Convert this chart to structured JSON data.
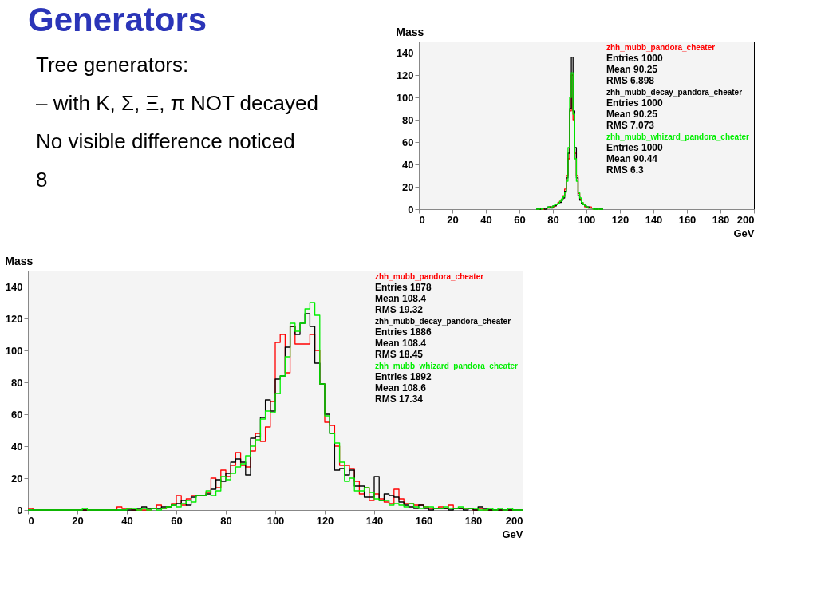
{
  "chart_data": [
    {
      "type": "other",
      "title": "Generators",
      "annotations": [
        "Tree generators:",
        "– with K, Σ, Ξ, π NOT decayed",
        "No visible difference noticed",
        "8"
      ]
    },
    {
      "type": "histogram",
      "title": "Mass",
      "xlabel": "GeV",
      "xlim": [
        0,
        200
      ],
      "ylim": [
        0,
        150
      ],
      "xticks": [
        0,
        20,
        40,
        60,
        80,
        100,
        120,
        140,
        160,
        180,
        200
      ],
      "yticks": [
        0,
        20,
        40,
        60,
        80,
        100,
        120,
        140
      ],
      "legend": "top right",
      "grid": false,
      "bins": [
        70,
        71,
        72,
        73,
        74,
        75,
        76,
        77,
        78,
        79,
        80,
        81,
        82,
        83,
        84,
        85,
        86,
        87,
        88,
        89,
        90,
        91,
        92,
        93,
        94,
        95,
        96,
        97,
        98,
        99,
        100,
        101,
        102,
        103,
        104,
        105,
        106,
        107,
        108,
        109,
        110
      ],
      "series": [
        {
          "name": "zhh_mubb_pandora_cheater",
          "color": "#ff0000",
          "values": [
            1,
            0,
            0,
            1,
            0,
            1,
            1,
            1,
            2,
            2,
            2,
            3,
            4,
            6,
            7,
            9,
            12,
            18,
            30,
            45,
            88,
            120,
            80,
            50,
            30,
            14,
            9,
            6,
            4,
            2,
            2,
            1,
            2,
            1,
            0,
            1,
            0,
            0,
            0,
            0
          ]
        },
        {
          "name": "zhh_mubb_decay_pandora_cheater",
          "color": "#000000",
          "values": [
            0,
            1,
            0,
            1,
            1,
            0,
            1,
            2,
            2,
            1,
            3,
            3,
            4,
            5,
            6,
            8,
            10,
            16,
            28,
            50,
            90,
            136,
            88,
            55,
            28,
            12,
            8,
            5,
            4,
            3,
            2,
            2,
            1,
            1,
            1,
            0,
            0,
            1,
            0,
            0
          ]
        },
        {
          "name": "zhh_mubb_whizard_pandora_cheater",
          "color": "#00ee00",
          "values": [
            0,
            0,
            1,
            0,
            1,
            1,
            1,
            2,
            1,
            2,
            3,
            4,
            4,
            5,
            7,
            9,
            11,
            15,
            25,
            55,
            100,
            122,
            85,
            45,
            25,
            15,
            10,
            6,
            4,
            3,
            2,
            1,
            1,
            1,
            0,
            0,
            0,
            0,
            0,
            0
          ]
        }
      ],
      "annotations": [
        "Entries 1000",
        "Mean 90.25",
        "RMS 6.898",
        "Entries 1000",
        "Mean 90.25",
        "RMS 7.073",
        "Entries 1000",
        "Mean 90.44",
        "RMS 6.3"
      ]
    },
    {
      "type": "histogram",
      "title": "Mass",
      "xlabel": "GeV",
      "xlim": [
        0,
        200
      ],
      "ylim": [
        0,
        150
      ],
      "xticks": [
        0,
        20,
        40,
        60,
        80,
        100,
        120,
        140,
        160,
        180,
        200
      ],
      "yticks": [
        0,
        20,
        40,
        60,
        80,
        100,
        120,
        140
      ],
      "legend": "top right",
      "grid": false,
      "bins": [
        0,
        2,
        4,
        6,
        8,
        10,
        12,
        14,
        16,
        18,
        20,
        22,
        24,
        26,
        28,
        30,
        32,
        34,
        36,
        38,
        40,
        42,
        44,
        46,
        48,
        50,
        52,
        54,
        56,
        58,
        60,
        62,
        64,
        66,
        68,
        70,
        72,
        74,
        76,
        78,
        80,
        82,
        84,
        86,
        88,
        90,
        92,
        94,
        96,
        98,
        100,
        102,
        104,
        106,
        108,
        110,
        112,
        114,
        116,
        118,
        120,
        122,
        124,
        126,
        128,
        130,
        132,
        134,
        136,
        138,
        140,
        142,
        144,
        146,
        148,
        150,
        152,
        154,
        156,
        158,
        160,
        162,
        164,
        166,
        168,
        170,
        172,
        174,
        176,
        178,
        180,
        182,
        184,
        186,
        188,
        190,
        192,
        194,
        196,
        198,
        200
      ],
      "series": [
        {
          "name": "zhh_mubb_pandora_cheater",
          "color": "#ff0000",
          "values": [
            1,
            0,
            0,
            0,
            0,
            0,
            0,
            0,
            0,
            0,
            0,
            0,
            0,
            0,
            0,
            0,
            0,
            0,
            2,
            1,
            1,
            0,
            0,
            0,
            0,
            1,
            3,
            1,
            2,
            4,
            9,
            3,
            7,
            9,
            9,
            9,
            11,
            20,
            14,
            25,
            21,
            28,
            36,
            28,
            27,
            37,
            48,
            43,
            52,
            68,
            105,
            110,
            86,
            115,
            104,
            104,
            104,
            110,
            100,
            79,
            55,
            53,
            40,
            28,
            28,
            26,
            18,
            10,
            14,
            6,
            10,
            7,
            5,
            4,
            13,
            7,
            4,
            4,
            3,
            3,
            2,
            1,
            1,
            2,
            1,
            3,
            1,
            1,
            1,
            1,
            0,
            1,
            0,
            0,
            0,
            0,
            0,
            0,
            0,
            0
          ]
        },
        {
          "name": "zhh_mubb_decay_pandora_cheater",
          "color": "#000000",
          "values": [
            0,
            0,
            0,
            0,
            0,
            0,
            0,
            0,
            0,
            0,
            0,
            0,
            0,
            0,
            0,
            0,
            0,
            0,
            0,
            0,
            0,
            0,
            1,
            2,
            1,
            1,
            1,
            2,
            2,
            3,
            4,
            6,
            3,
            8,
            9,
            9,
            10,
            13,
            19,
            18,
            23,
            30,
            32,
            30,
            22,
            45,
            46,
            58,
            69,
            62,
            82,
            84,
            102,
            115,
            110,
            117,
            123,
            115,
            92,
            79,
            60,
            48,
            25,
            26,
            22,
            25,
            15,
            15,
            8,
            8,
            21,
            6,
            10,
            9,
            8,
            5,
            3,
            2,
            1,
            3,
            1,
            0,
            1,
            1,
            1,
            0,
            1,
            1,
            0,
            1,
            0,
            2,
            1,
            0,
            0,
            0,
            0,
            0,
            0,
            0
          ]
        },
        {
          "name": "zhh_mubb_whizard_pandora_cheater",
          "color": "#00ee00",
          "values": [
            0,
            0,
            0,
            0,
            0,
            0,
            0,
            0,
            0,
            0,
            0,
            1,
            0,
            0,
            0,
            0,
            0,
            0,
            0,
            0,
            1,
            1,
            0,
            1,
            0,
            1,
            0,
            1,
            2,
            3,
            2,
            4,
            6,
            5,
            9,
            9,
            12,
            9,
            12,
            21,
            19,
            23,
            27,
            29,
            34,
            40,
            44,
            57,
            62,
            61,
            73,
            84,
            96,
            117,
            112,
            117,
            126,
            130,
            122,
            79,
            59,
            48,
            42,
            30,
            18,
            20,
            12,
            12,
            14,
            11,
            7,
            6,
            6,
            3,
            4,
            3,
            2,
            4,
            2,
            1,
            2,
            2,
            1,
            1,
            2,
            1,
            1,
            2,
            1,
            1,
            1,
            0,
            0,
            1,
            0,
            1,
            0,
            1,
            0,
            0
          ]
        }
      ],
      "annotations": [
        "Entries 1878",
        "Mean 108.4",
        "RMS 19.32",
        "Entries 1886",
        "Mean 108.4",
        "RMS 18.45",
        "Entries 1892",
        "Mean 108.6",
        "RMS 17.34"
      ]
    }
  ]
}
